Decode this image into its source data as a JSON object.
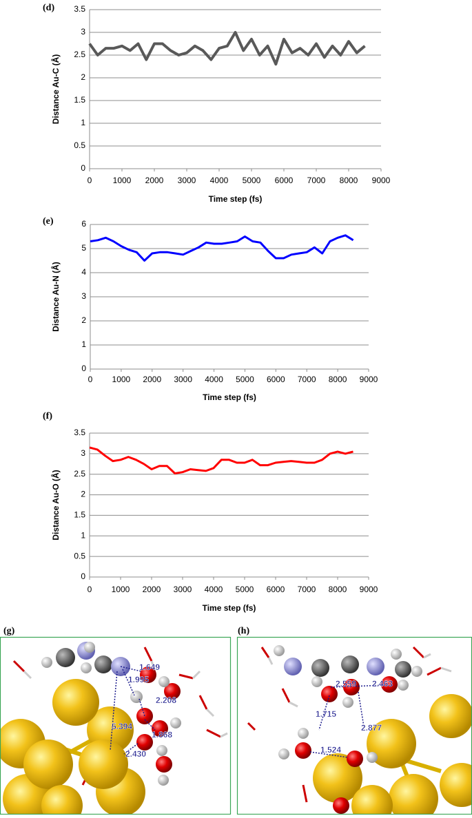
{
  "chart_data": [
    {
      "type": "line",
      "panel": "(d)",
      "xlabel": "Time step (fs)",
      "ylabel": "Distance Au-C (Å)",
      "x": [
        0,
        250,
        500,
        750,
        1000,
        1250,
        1500,
        1750,
        2000,
        2250,
        2500,
        2750,
        3000,
        3250,
        3500,
        3750,
        4000,
        4250,
        4500,
        4750,
        5000,
        5250,
        5500,
        5750,
        6000,
        6250,
        6500,
        6750,
        7000,
        7250,
        7500,
        7750,
        8000,
        8250,
        8500
      ],
      "series": [
        {
          "color": "#595959",
          "values": [
            2.75,
            2.5,
            2.65,
            2.65,
            2.7,
            2.6,
            2.75,
            2.4,
            2.75,
            2.75,
            2.6,
            2.5,
            2.55,
            2.7,
            2.6,
            2.4,
            2.65,
            2.7,
            3.0,
            2.6,
            2.85,
            2.5,
            2.7,
            2.3,
            2.85,
            2.55,
            2.65,
            2.5,
            2.75,
            2.45,
            2.7,
            2.5,
            2.8,
            2.55,
            2.7
          ]
        }
      ],
      "xlim": [
        0,
        9000
      ],
      "xticks": [
        0,
        1000,
        2000,
        3000,
        4000,
        5000,
        6000,
        7000,
        8000,
        9000
      ],
      "ylim": [
        0,
        3.5
      ],
      "yticks": [
        0,
        0.5,
        1,
        1.5,
        2,
        2.5,
        3,
        3.5
      ],
      "grid": true
    },
    {
      "type": "line",
      "panel": "(e)",
      "xlabel": "Time step (fs)",
      "ylabel": "Distance Au-N (Å)",
      "x": [
        0,
        250,
        500,
        750,
        1000,
        1250,
        1500,
        1750,
        2000,
        2250,
        2500,
        2750,
        3000,
        3250,
        3500,
        3750,
        4000,
        4250,
        4500,
        4750,
        5000,
        5250,
        5500,
        5750,
        6000,
        6250,
        6500,
        6750,
        7000,
        7250,
        7500,
        7750,
        8000,
        8250,
        8500
      ],
      "series": [
        {
          "color": "#0000ff",
          "values": [
            5.3,
            5.35,
            5.45,
            5.3,
            5.1,
            4.95,
            4.85,
            4.5,
            4.8,
            4.85,
            4.85,
            4.8,
            4.75,
            4.9,
            5.05,
            5.25,
            5.2,
            5.2,
            5.25,
            5.3,
            5.5,
            5.3,
            5.25,
            4.9,
            4.6,
            4.6,
            4.75,
            4.8,
            4.85,
            5.05,
            4.8,
            5.3,
            5.45,
            5.55,
            5.35
          ]
        }
      ],
      "xlim": [
        0,
        9000
      ],
      "xticks": [
        0,
        1000,
        2000,
        3000,
        4000,
        5000,
        6000,
        7000,
        8000,
        9000
      ],
      "ylim": [
        0,
        6
      ],
      "yticks": [
        0,
        1,
        2,
        3,
        4,
        5,
        6
      ],
      "grid": true
    },
    {
      "type": "line",
      "panel": "(f)",
      "xlabel": "Time step (fs)",
      "ylabel": "Distance Au-O (Å)",
      "x": [
        0,
        250,
        500,
        750,
        1000,
        1250,
        1500,
        1750,
        2000,
        2250,
        2500,
        2750,
        3000,
        3250,
        3500,
        3750,
        4000,
        4250,
        4500,
        4750,
        5000,
        5250,
        5500,
        5750,
        6000,
        6250,
        6500,
        6750,
        7000,
        7250,
        7500,
        7750,
        8000,
        8250,
        8500
      ],
      "series": [
        {
          "color": "#ff0000",
          "values": [
            3.15,
            3.1,
            2.95,
            2.82,
            2.85,
            2.92,
            2.85,
            2.75,
            2.62,
            2.7,
            2.7,
            2.52,
            2.55,
            2.62,
            2.6,
            2.58,
            2.65,
            2.85,
            2.85,
            2.78,
            2.78,
            2.85,
            2.72,
            2.72,
            2.78,
            2.8,
            2.82,
            2.8,
            2.78,
            2.78,
            2.85,
            3.0,
            3.05,
            3.0,
            3.05
          ]
        }
      ],
      "xlim": [
        0,
        9000
      ],
      "xticks": [
        0,
        1000,
        2000,
        3000,
        4000,
        5000,
        6000,
        7000,
        8000,
        9000
      ],
      "ylim": [
        0,
        3.5
      ],
      "yticks": [
        0,
        0.5,
        1,
        1.5,
        2,
        2.5,
        3,
        3.5
      ],
      "grid": true
    }
  ],
  "images": [
    {
      "label": "(g)",
      "distances": [
        "1.649",
        "1.995",
        "2.208",
        "5.394",
        "1.868",
        "2.430"
      ]
    },
    {
      "label": "(h)",
      "distances": [
        "2.559",
        "2.463",
        "1.715",
        "2.877",
        "1.524"
      ]
    }
  ]
}
